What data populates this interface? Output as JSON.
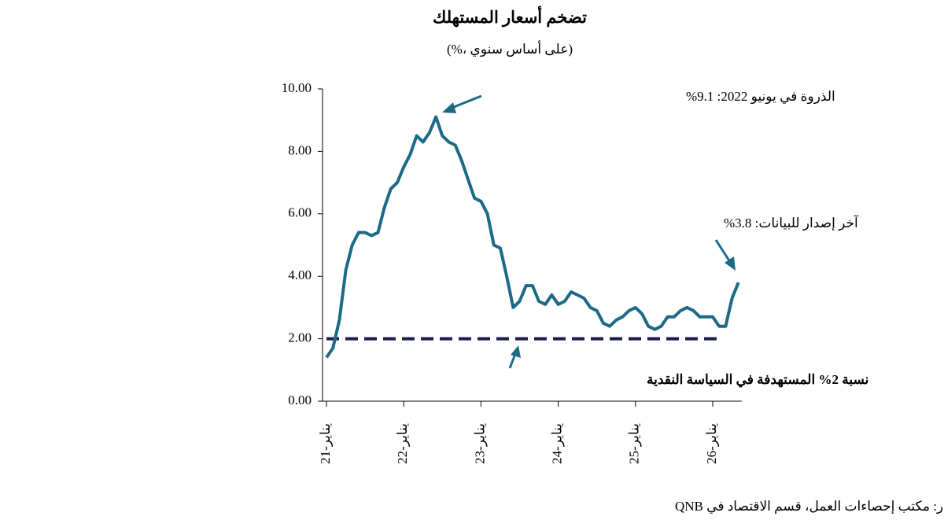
{
  "chart_data": {
    "type": "line",
    "title": "تضخم أسعار المستهلك",
    "subtitle": "(%، على أساس سنوي)",
    "categories": [
      "يناير-21",
      null,
      null,
      null,
      null,
      null,
      null,
      null,
      null,
      null,
      null,
      null,
      "يناير-22",
      null,
      null,
      null,
      null,
      null,
      null,
      null,
      null,
      null,
      null,
      null,
      "يناير-23",
      null,
      null,
      null,
      null,
      null,
      null,
      null,
      null,
      null,
      null,
      null,
      "يناير-24",
      null,
      null,
      null,
      null,
      null,
      null,
      null,
      null,
      null,
      null,
      null,
      "يناير-25",
      null,
      null,
      null,
      null,
      null,
      null,
      null,
      null,
      null,
      null,
      null,
      "يناير-26",
      null,
      null,
      null,
      null
    ],
    "series": [
      {
        "name": "تضخم أسعار المستهلك",
        "color": "#1d6a86",
        "values": [
          1.4,
          1.7,
          2.6,
          4.2,
          5.0,
          5.4,
          5.4,
          5.3,
          5.4,
          6.2,
          6.8,
          7.0,
          7.5,
          7.9,
          8.5,
          8.3,
          8.6,
          9.1,
          8.5,
          8.3,
          8.2,
          7.7,
          7.1,
          6.5,
          6.4,
          6.0,
          5.0,
          4.9,
          4.0,
          3.0,
          3.2,
          3.7,
          3.7,
          3.2,
          3.1,
          3.4,
          3.1,
          3.2,
          3.5,
          3.4,
          3.3,
          3.0,
          2.9,
          2.5,
          2.4,
          2.6,
          2.7,
          2.9,
          3.0,
          2.8,
          2.4,
          2.3,
          2.4,
          2.7,
          2.7,
          2.9,
          3.0,
          2.9,
          2.7,
          2.7,
          2.7,
          2.4,
          2.4,
          3.3,
          3.8
        ]
      }
    ],
    "target": {
      "value": 2,
      "label": "نسبة 2% المستهدفة في السياسة النقدية",
      "color": "#1b1b4f"
    },
    "annotations": [
      "الذروة في يونيو 2022: 9.1%",
      "آخر إصدار للبيانات: 3.8%"
    ],
    "source": "المصدر: مكتب إحصاءات العمل، قسم الاقتصاد في QNB",
    "ylim": [
      0,
      10
    ],
    "yticks": [
      {
        "value": 0,
        "label": "0.00"
      },
      {
        "value": 2,
        "label": "2.00"
      },
      {
        "value": 4,
        "label": "4.00"
      },
      {
        "value": 6,
        "label": "6.00"
      },
      {
        "value": 8,
        "label": "8.00"
      },
      {
        "value": 10,
        "label": "10.00"
      }
    ]
  }
}
